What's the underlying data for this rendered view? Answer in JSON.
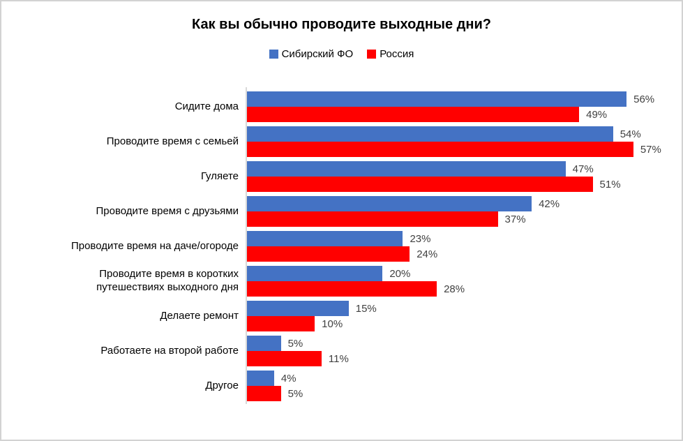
{
  "chart_data": {
    "type": "bar",
    "orientation": "horizontal",
    "title": "Как вы обычно проводите выходные дни?",
    "categories": [
      "Сидите дома",
      "Проводите время с семьей",
      "Гуляете",
      "Проводите время с друзьями",
      "Проводите время на даче/огороде",
      "Проводите время в коротких путешествиях выходного дня",
      "Делаете ремонт",
      "Работаете на второй работе",
      "Другое"
    ],
    "series": [
      {
        "name": "Сибирский ФО",
        "color": "#4472C4",
        "values": [
          56,
          54,
          47,
          42,
          23,
          20,
          15,
          5,
          4
        ]
      },
      {
        "name": "Россия",
        "color": "#FF0000",
        "values": [
          49,
          57,
          51,
          37,
          24,
          28,
          10,
          11,
          5
        ]
      }
    ],
    "value_suffix": "%",
    "xlim": [
      0,
      60
    ],
    "grid": false,
    "legend_position": "top",
    "axis_line_color": "#D9D9D9",
    "value_label_color": "#404040"
  }
}
